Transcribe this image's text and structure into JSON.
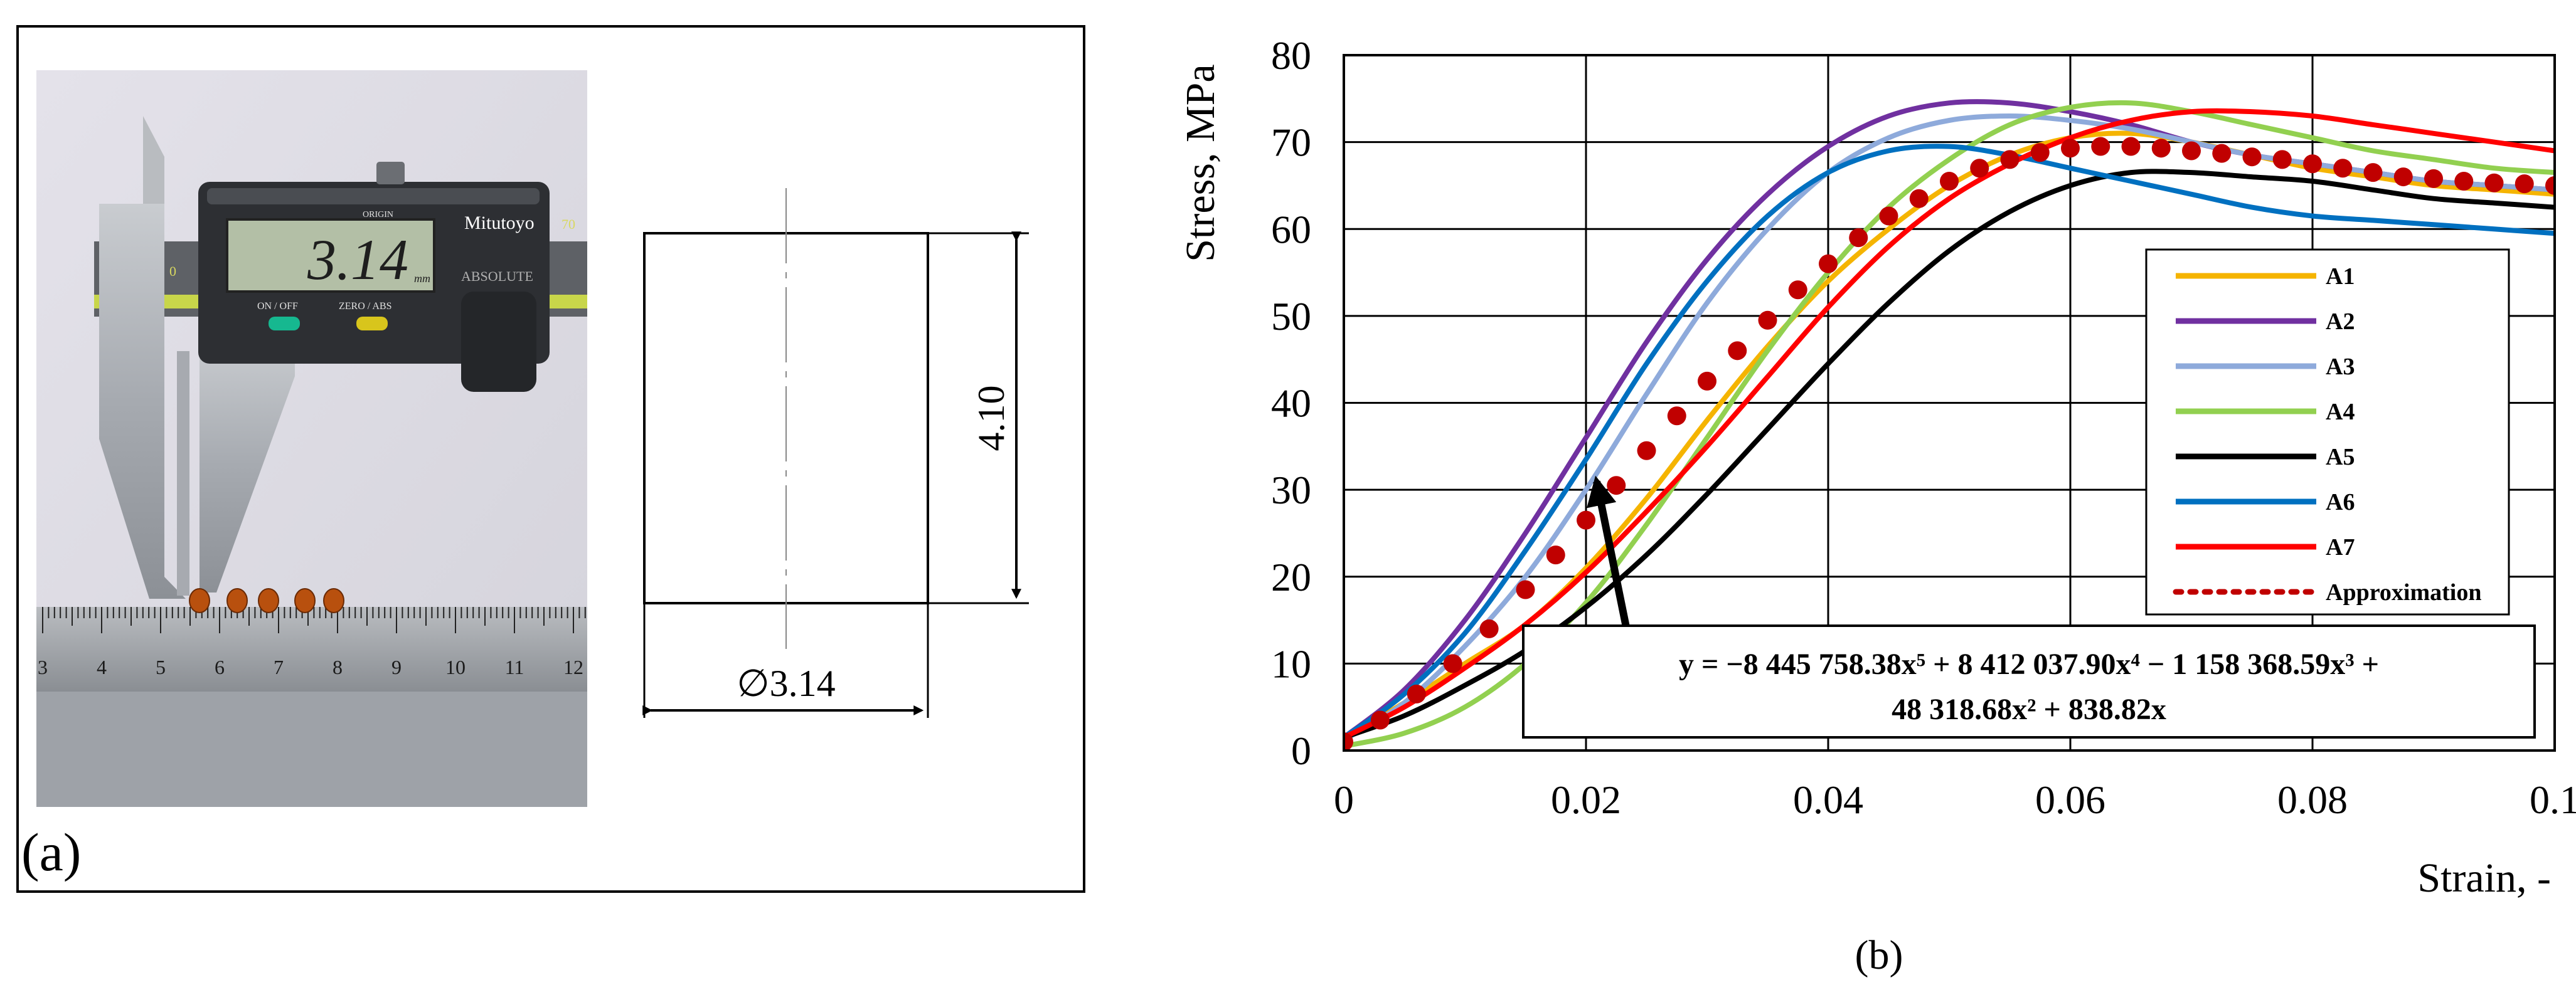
{
  "panel_a": {
    "label": "(a)",
    "caliper": {
      "brand": "Mitutoyo",
      "display_value": "3.14",
      "display_unit": "mm",
      "origin_label": "ORIGIN",
      "on_off_label": "ON / OFF",
      "zero_abs_label": "ZERO / ABS",
      "absolute_label": "ABSOLUTE",
      "scale_0": "0",
      "scale_70": "70"
    },
    "ruler_numbers": [
      "3",
      "4",
      "5",
      "6",
      "7",
      "8",
      "9",
      "10",
      "11",
      "12"
    ],
    "drawing": {
      "height_label": "4.10",
      "diameter_label": "∅3.14"
    }
  },
  "panel_b": {
    "label": "(b)"
  },
  "chart_data": {
    "type": "line",
    "title": "",
    "xlabel": "Strain, -",
    "ylabel": "Stress, MPa",
    "xlim": [
      0,
      0.1
    ],
    "ylim": [
      0,
      80
    ],
    "xticks": [
      0,
      0.02,
      0.04,
      0.06,
      0.08,
      0.1
    ],
    "xtick_labels": [
      "0",
      "0.02",
      "0.04",
      "0.06",
      "0.08",
      "0.1"
    ],
    "yticks": [
      0,
      10,
      20,
      30,
      40,
      50,
      60,
      70,
      80
    ],
    "ytick_labels": [
      "0",
      "10",
      "20",
      "30",
      "40",
      "50",
      "60",
      "70",
      "80"
    ],
    "grid": true,
    "legend": "right-center",
    "series": [
      {
        "name": "A1",
        "color": "#f5b400",
        "style": "solid",
        "x": [
          0,
          0.005,
          0.01,
          0.015,
          0.02,
          0.025,
          0.03,
          0.035,
          0.04,
          0.045,
          0.05,
          0.055,
          0.06,
          0.065,
          0.07,
          0.075,
          0.08,
          0.085,
          0.09,
          0.095,
          0.1
        ],
        "y": [
          1.5,
          5.5,
          10,
          14.5,
          21,
          29,
          38,
          46.5,
          54,
          60,
          65,
          68.5,
          70.5,
          71,
          70,
          68.5,
          67,
          66,
          65,
          64.5,
          64
        ]
      },
      {
        "name": "A2",
        "color": "#7030a0",
        "style": "solid",
        "x": [
          0,
          0.005,
          0.01,
          0.015,
          0.02,
          0.025,
          0.03,
          0.035,
          0.04,
          0.045,
          0.05,
          0.055,
          0.06,
          0.065,
          0.07,
          0.075,
          0.08,
          0.085,
          0.09,
          0.095,
          0.1
        ],
        "y": [
          1.5,
          7,
          15,
          25,
          36,
          47,
          56.5,
          64,
          69.5,
          73,
          74.5,
          74.5,
          73.5,
          72,
          70,
          68.5,
          67.5,
          66.5,
          65.5,
          65,
          64.5
        ]
      },
      {
        "name": "A3",
        "color": "#8eaadb",
        "style": "solid",
        "x": [
          0,
          0.005,
          0.01,
          0.015,
          0.02,
          0.025,
          0.03,
          0.035,
          0.04,
          0.045,
          0.05,
          0.055,
          0.06,
          0.065,
          0.07,
          0.075,
          0.08,
          0.085,
          0.09,
          0.095,
          0.1
        ],
        "y": [
          1.2,
          5.5,
          12,
          20,
          30,
          41,
          51.5,
          60,
          66.5,
          70.5,
          72.5,
          73,
          72.5,
          71.5,
          70,
          68.5,
          67.5,
          66.5,
          65.5,
          65,
          64.5
        ]
      },
      {
        "name": "A4",
        "color": "#92d050",
        "style": "solid",
        "x": [
          0,
          0.005,
          0.01,
          0.015,
          0.02,
          0.025,
          0.03,
          0.035,
          0.04,
          0.045,
          0.05,
          0.055,
          0.06,
          0.065,
          0.07,
          0.075,
          0.08,
          0.085,
          0.09,
          0.095,
          0.1
        ],
        "y": [
          0.5,
          2,
          5,
          10,
          17,
          26,
          36,
          46,
          55,
          62.5,
          68,
          72,
          74,
          74.5,
          73.5,
          72,
          70.5,
          69,
          68,
          67,
          66.5
        ]
      },
      {
        "name": "A5",
        "color": "#000000",
        "style": "solid",
        "x": [
          0,
          0.005,
          0.01,
          0.015,
          0.02,
          0.025,
          0.03,
          0.035,
          0.04,
          0.045,
          0.05,
          0.055,
          0.06,
          0.065,
          0.07,
          0.075,
          0.08,
          0.085,
          0.09,
          0.095,
          0.1
        ],
        "y": [
          1.5,
          4,
          7.5,
          11.5,
          16.5,
          22.5,
          29.5,
          37,
          44.5,
          51.5,
          57.5,
          62,
          65,
          66.5,
          66.5,
          66,
          65.5,
          64.5,
          63.5,
          63,
          62.5
        ]
      },
      {
        "name": "A6",
        "color": "#0070c0",
        "style": "solid",
        "x": [
          0,
          0.005,
          0.01,
          0.015,
          0.02,
          0.025,
          0.03,
          0.035,
          0.04,
          0.045,
          0.05,
          0.055,
          0.06,
          0.065,
          0.07,
          0.075,
          0.08,
          0.085,
          0.09,
          0.095,
          0.1
        ],
        "y": [
          1.5,
          6.5,
          13.5,
          23,
          33.5,
          44.5,
          54,
          61.5,
          66.5,
          69,
          69.5,
          68.5,
          67,
          65.5,
          64,
          62.5,
          61.5,
          61,
          60.5,
          60,
          59.5
        ]
      },
      {
        "name": "A7",
        "color": "#ff0000",
        "style": "solid",
        "x": [
          0,
          0.005,
          0.01,
          0.015,
          0.02,
          0.025,
          0.03,
          0.035,
          0.04,
          0.045,
          0.05,
          0.055,
          0.06,
          0.065,
          0.07,
          0.075,
          0.08,
          0.085,
          0.09,
          0.095,
          0.1
        ],
        "y": [
          1.5,
          5,
          9.5,
          14.5,
          20.5,
          27.5,
          35,
          43,
          51,
          58,
          63.5,
          67.5,
          70.5,
          72.5,
          73.5,
          73.5,
          73,
          72,
          71,
          70,
          69
        ]
      },
      {
        "name": "Approximation",
        "color": "#c00000",
        "style": "dotted",
        "x": [
          0,
          0.003,
          0.006,
          0.009,
          0.012,
          0.015,
          0.0175,
          0.02,
          0.0225,
          0.025,
          0.0275,
          0.03,
          0.0325,
          0.035,
          0.0375,
          0.04,
          0.0425,
          0.045,
          0.0475,
          0.05,
          0.0525,
          0.055,
          0.0575,
          0.06,
          0.0625,
          0.065,
          0.0675,
          0.07,
          0.0725,
          0.075,
          0.0775,
          0.08,
          0.0825,
          0.085,
          0.0875,
          0.09,
          0.0925,
          0.095,
          0.0975,
          0.1
        ],
        "y": [
          1,
          3.5,
          6.5,
          10,
          14,
          18.5,
          22.5,
          26.5,
          30.5,
          34.5,
          38.5,
          42.5,
          46,
          49.5,
          53,
          56,
          59,
          61.5,
          63.5,
          65.5,
          67,
          68,
          68.8,
          69.3,
          69.5,
          69.5,
          69.3,
          69,
          68.7,
          68.3,
          68,
          67.5,
          67,
          66.5,
          66,
          65.8,
          65.5,
          65.3,
          65.2,
          65
        ]
      }
    ],
    "annotation": {
      "line1": "y = −8 445 758.38x⁵ + 8 412 037.90x⁴ − 1 158 368.59x³ +",
      "line2": "48 318.68x² + 838.82x",
      "arrow_target": [
        0.0205,
        30
      ]
    }
  }
}
